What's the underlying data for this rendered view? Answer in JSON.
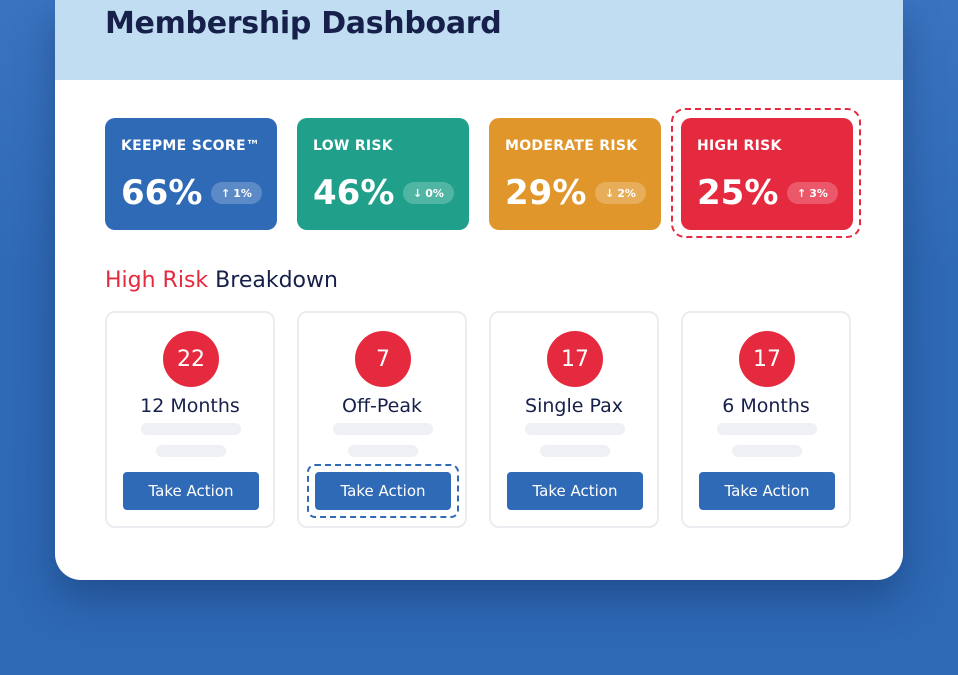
{
  "header": {
    "title": "Membership Dashboard"
  },
  "stats": [
    {
      "label": "KEEPME SCORE™",
      "value": "66%",
      "change": "1%",
      "direction": "up",
      "color": "#2f6ab6"
    },
    {
      "label": "LOW RISK",
      "value": "46%",
      "change": "0%",
      "direction": "down",
      "color": "#20a08a"
    },
    {
      "label": "MODERATE RISK",
      "value": "29%",
      "change": "2%",
      "direction": "down",
      "color": "#e0962a"
    },
    {
      "label": "HIGH RISK",
      "value": "25%",
      "change": "3%",
      "direction": "up",
      "color": "#e5293f"
    }
  ],
  "breakdown": {
    "title_accent": "High Risk",
    "title_rest": "Breakdown",
    "cards": [
      {
        "count": "22",
        "name": "12 Months",
        "action": "Take Action"
      },
      {
        "count": "7",
        "name": "Off-Peak",
        "action": "Take Action"
      },
      {
        "count": "17",
        "name": "Single Pax",
        "action": "Take Action"
      },
      {
        "count": "17",
        "name": "6 Months",
        "action": "Take Action"
      }
    ]
  },
  "icons": {
    "up": "arrow-up-icon",
    "down": "arrow-down-icon"
  },
  "colors": {
    "accent": "#e5293f",
    "primary": "#2f6ab6",
    "header_bg": "#c0ddf2",
    "text_dark": "#16204a"
  }
}
